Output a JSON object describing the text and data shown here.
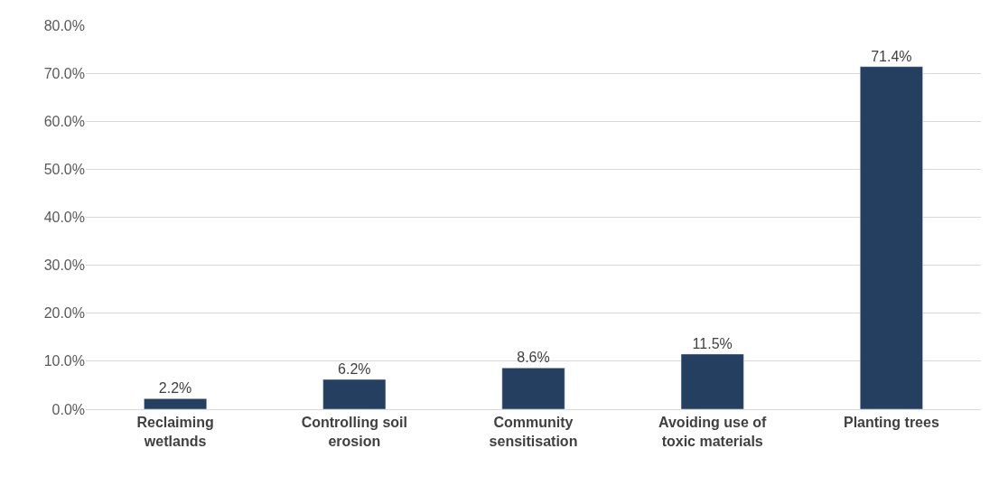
{
  "chart_data": {
    "type": "bar",
    "categories": [
      "Reclaiming wetlands",
      "Controlling soil erosion",
      "Community sensitisation",
      "Avoiding use of toxic materials",
      "Planting trees"
    ],
    "values": [
      2.2,
      6.2,
      8.6,
      11.5,
      71.4
    ],
    "value_labels": [
      "2.2%",
      "6.2%",
      "8.6%",
      "11.5%",
      "71.4%"
    ],
    "color": "#243f60",
    "ylim": [
      0,
      80
    ],
    "yticks": [
      {
        "value": 0,
        "label": "0.0%"
      },
      {
        "value": 10,
        "label": "10.0%"
      },
      {
        "value": 20,
        "label": "20.0%"
      },
      {
        "value": 30,
        "label": "30.0%"
      },
      {
        "value": 40,
        "label": "40.0%"
      },
      {
        "value": 50,
        "label": "50.0%"
      },
      {
        "value": 60,
        "label": "60.0%"
      },
      {
        "value": 70,
        "label": "70.0%"
      },
      {
        "value": 80,
        "label": "80.0%"
      }
    ],
    "grid": "y"
  }
}
